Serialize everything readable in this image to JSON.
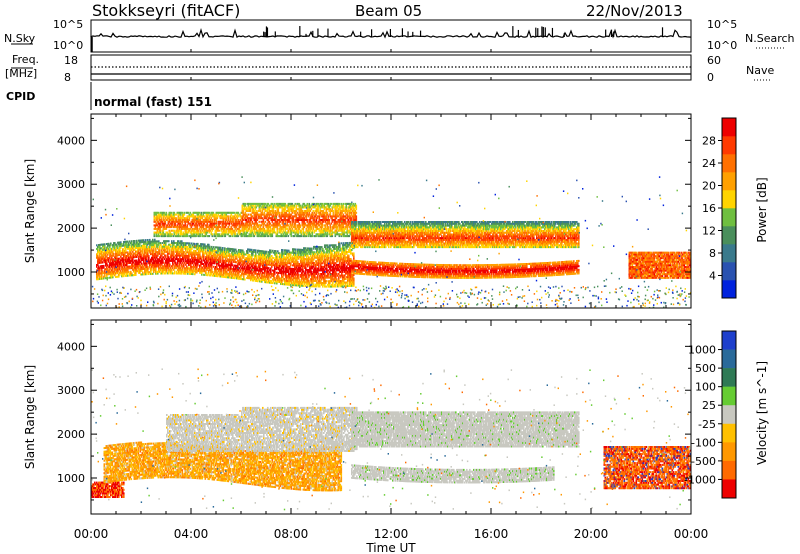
{
  "header": {
    "station": "Stokkseyri (fitACF)",
    "beam": "Beam 05",
    "date": "22/Nov/2013"
  },
  "nsky_panel": {
    "left_label": "N.Sky",
    "right_label": "N.Search",
    "tick_top": "10^5",
    "tick_bottom": "10^0"
  },
  "freq_panel": {
    "left_label_line1": "Freq.",
    "left_label_line2": "[MHz]",
    "left_ticks": [
      "18",
      "8"
    ],
    "right_ticks": [
      "60",
      "0"
    ],
    "right_label": "Nave"
  },
  "cpid_panel": {
    "label": "CPID",
    "text": "normal (fast) 151"
  },
  "colors": {
    "power_scale": [
      "#0022dd",
      "#2a52b0",
      "#3a7a8c",
      "#4a8f5c",
      "#6fbf40",
      "#ffd400",
      "#ffa000",
      "#ff7000",
      "#ff3a00",
      "#ee0000"
    ],
    "velocity_scale": [
      "#1e3fcc",
      "#2a6a9a",
      "#2f7a55",
      "#66cc33",
      "#c8c8c0",
      "#ffc000",
      "#ff9800",
      "#ff6a00",
      "#ee0000"
    ]
  },
  "chart_data": [
    {
      "type": "heatmap",
      "title": "",
      "ylabel": "Slant Range [km]",
      "ylim": [
        180,
        4600
      ],
      "yticks": [
        1000,
        2000,
        3000,
        4000
      ],
      "x_ticks": [
        "00:00",
        "04:00",
        "08:00",
        "12:00",
        "16:00",
        "20:00",
        "00:00"
      ],
      "xlim_hours": [
        0,
        24
      ],
      "colorbar": {
        "label": "Power [dB]",
        "range": [
          0,
          32
        ],
        "ticks": [
          "4",
          "8",
          "12",
          "16",
          "20",
          "24",
          "28"
        ]
      },
      "echo_regions": [
        {
          "t0": 0.2,
          "t1": 10.6,
          "r_mid": "1000 to 1800",
          "power_dB": "12 to 30"
        },
        {
          "t0": 10.4,
          "t1": 19.5,
          "r": [
            900,
            1100
          ],
          "power_dB": "20 to 30"
        },
        {
          "t0": 10.4,
          "t1": 19.5,
          "r": [
            1600,
            2100
          ],
          "power_dB": "16 to 28"
        },
        {
          "t0": 21.5,
          "t1": 24.0,
          "r": [
            900,
            1400
          ],
          "power_dB": "18 to 30"
        }
      ]
    },
    {
      "type": "heatmap",
      "title": "",
      "ylabel": "Slant Range [km]",
      "ylim": [
        180,
        4600
      ],
      "yticks": [
        1000,
        2000,
        3000,
        4000
      ],
      "x_ticks": [
        "00:00",
        "04:00",
        "08:00",
        "12:00",
        "16:00",
        "20:00",
        "00:00"
      ],
      "xlabel": "Time UT",
      "xlim_hours": [
        0,
        24
      ],
      "colorbar": {
        "label": "Velocity [m s^-1]",
        "ticks": [
          "1000",
          "500",
          "100",
          "25",
          "-25",
          "-100",
          "-500",
          "-1000"
        ]
      },
      "echo_regions": [
        {
          "t0": 0.0,
          "t1": 1.2,
          "r": [
            600,
            900
          ],
          "velocity": "-500 to -1000"
        },
        {
          "t0": 0.5,
          "t1": 9.5,
          "r": [
            900,
            1800
          ],
          "velocity": "-100 to -500"
        },
        {
          "t0": 3.0,
          "t1": 10.5,
          "r": [
            1500,
            2600
          ],
          "velocity": "-25 to 25"
        },
        {
          "t0": 10.4,
          "t1": 19.5,
          "r": [
            1700,
            2500
          ],
          "velocity": "-25 to 25"
        },
        {
          "t0": 10.4,
          "t1": 18.5,
          "r": [
            900,
            1200
          ],
          "velocity": "-25 to 25"
        },
        {
          "t0": 20.5,
          "t1": 24.0,
          "r": [
            800,
            1700
          ],
          "velocity": "-100 to -1000"
        }
      ]
    }
  ]
}
